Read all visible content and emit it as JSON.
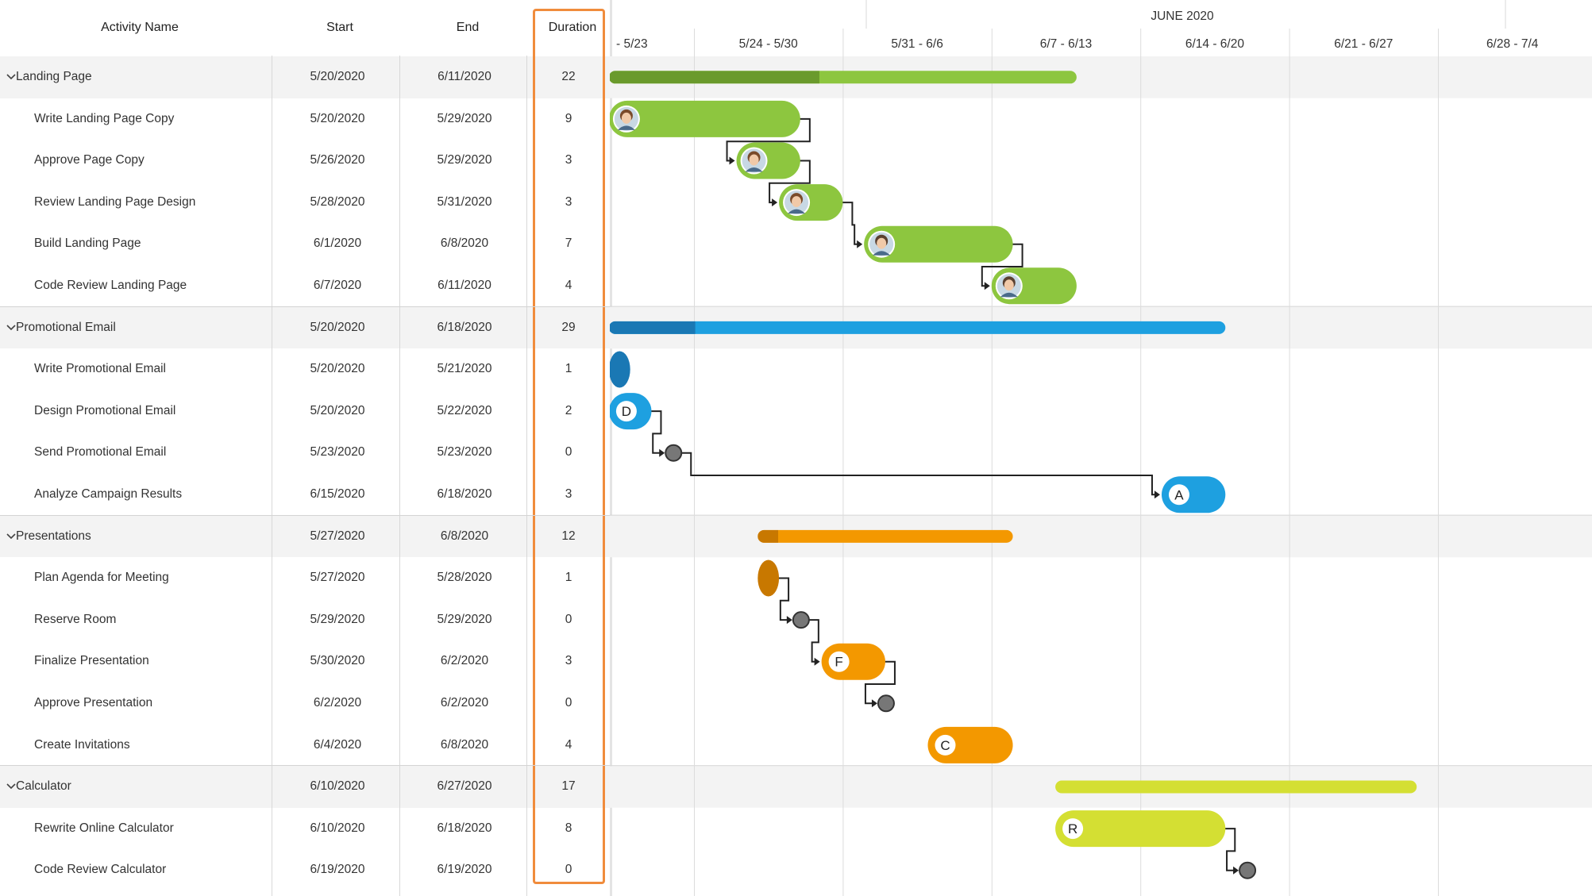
{
  "grid": {
    "headers": {
      "name": "Activity Name",
      "start": "Start",
      "end": "End",
      "duration": "Duration"
    },
    "rows": [
      {
        "type": "group",
        "name": "Landing Page",
        "start": "5/20/2020",
        "end": "6/11/2020",
        "duration": "22",
        "icon": "chevron-down-icon"
      },
      {
        "type": "task",
        "name": "Write Landing Page Copy",
        "start": "5/20/2020",
        "end": "5/29/2020",
        "duration": "9"
      },
      {
        "type": "task",
        "name": "Approve Page Copy",
        "start": "5/26/2020",
        "end": "5/29/2020",
        "duration": "3"
      },
      {
        "type": "task",
        "name": "Review Landing Page Design",
        "start": "5/28/2020",
        "end": "5/31/2020",
        "duration": "3"
      },
      {
        "type": "task",
        "name": "Build Landing Page",
        "start": "6/1/2020",
        "end": "6/8/2020",
        "duration": "7"
      },
      {
        "type": "task",
        "name": "Code Review Landing Page",
        "start": "6/7/2020",
        "end": "6/11/2020",
        "duration": "4"
      },
      {
        "type": "group",
        "name": "Promotional Email",
        "start": "5/20/2020",
        "end": "6/18/2020",
        "duration": "29",
        "icon": "chevron-down-icon"
      },
      {
        "type": "task",
        "name": "Write Promotional Email",
        "start": "5/20/2020",
        "end": "5/21/2020",
        "duration": "1"
      },
      {
        "type": "task",
        "name": "Design Promotional Email",
        "start": "5/20/2020",
        "end": "5/22/2020",
        "duration": "2"
      },
      {
        "type": "task",
        "name": "Send Promotional Email",
        "start": "5/23/2020",
        "end": "5/23/2020",
        "duration": "0"
      },
      {
        "type": "task",
        "name": "Analyze Campaign Results",
        "start": "6/15/2020",
        "end": "6/18/2020",
        "duration": "3"
      },
      {
        "type": "group",
        "name": "Presentations",
        "start": "5/27/2020",
        "end": "6/8/2020",
        "duration": "12",
        "icon": "chevron-down-icon"
      },
      {
        "type": "task",
        "name": "Plan Agenda for Meeting",
        "start": "5/27/2020",
        "end": "5/28/2020",
        "duration": "1"
      },
      {
        "type": "task",
        "name": "Reserve Room",
        "start": "5/29/2020",
        "end": "5/29/2020",
        "duration": "0"
      },
      {
        "type": "task",
        "name": "Finalize Presentation",
        "start": "5/30/2020",
        "end": "6/2/2020",
        "duration": "3"
      },
      {
        "type": "task",
        "name": "Approve Presentation",
        "start": "6/2/2020",
        "end": "6/2/2020",
        "duration": "0"
      },
      {
        "type": "task",
        "name": "Create Invitations",
        "start": "6/4/2020",
        "end": "6/8/2020",
        "duration": "4"
      },
      {
        "type": "group",
        "name": "Calculator",
        "start": "6/10/2020",
        "end": "6/27/2020",
        "duration": "17",
        "icon": "chevron-down-icon"
      },
      {
        "type": "task",
        "name": "Rewrite Online Calculator",
        "start": "6/10/2020",
        "end": "6/18/2020",
        "duration": "8"
      },
      {
        "type": "task",
        "name": "Code Review Calculator",
        "start": "6/19/2020",
        "end": "6/19/2020",
        "duration": "0"
      }
    ]
  },
  "timeline": {
    "month_label": "JUNE 2020",
    "weeks": [
      "- 5/23",
      "5/24 - 5/30",
      "5/31 - 6/6",
      "6/7 - 6/13",
      "6/14 - 6/20",
      "6/21 - 6/27",
      "6/28 - 7/4"
    ]
  },
  "colors": {
    "landing": "#8dc63f",
    "landing_dark": "#6a9a2c",
    "email": "#1ea0e0",
    "email_dark": "#1a78b4",
    "presentations": "#f39800",
    "presentations_dark": "#c87800",
    "calculator": "#d4df33",
    "milestone": "#777777",
    "connector": "#222222",
    "highlight": "#f08c3c"
  },
  "bars": [
    {
      "row": 0,
      "kind": "summary",
      "group": "landing",
      "start": "2020-05-20",
      "end": "2020-06-11",
      "progress": 0.45
    },
    {
      "row": 1,
      "kind": "task",
      "group": "landing",
      "start": "2020-05-20",
      "end": "2020-05-29",
      "avatar": "woman-avatar-icon"
    },
    {
      "row": 2,
      "kind": "task",
      "group": "landing",
      "start": "2020-05-26",
      "end": "2020-05-29",
      "avatar": "woman-avatar-icon"
    },
    {
      "row": 3,
      "kind": "task",
      "group": "landing",
      "start": "2020-05-28",
      "end": "2020-05-31",
      "avatar": "woman-avatar-icon"
    },
    {
      "row": 4,
      "kind": "task",
      "group": "landing",
      "start": "2020-06-01",
      "end": "2020-06-08",
      "avatar": "man-avatar-icon"
    },
    {
      "row": 5,
      "kind": "task",
      "group": "landing",
      "start": "2020-06-07",
      "end": "2020-06-11",
      "avatar": "man-avatar-icon"
    },
    {
      "row": 6,
      "kind": "summary",
      "group": "email",
      "start": "2020-05-20",
      "end": "2020-06-18",
      "progress": 0.14
    },
    {
      "row": 7,
      "kind": "task",
      "group": "email",
      "start": "2020-05-20",
      "end": "2020-05-21",
      "dark": true
    },
    {
      "row": 8,
      "kind": "task",
      "group": "email",
      "start": "2020-05-20",
      "end": "2020-05-22",
      "letter": "D"
    },
    {
      "row": 9,
      "kind": "milestone",
      "group": "email",
      "start": "2020-05-23"
    },
    {
      "row": 10,
      "kind": "task",
      "group": "email",
      "start": "2020-06-15",
      "end": "2020-06-18",
      "letter": "A"
    },
    {
      "row": 11,
      "kind": "summary",
      "group": "presentations",
      "start": "2020-05-27",
      "end": "2020-06-08",
      "progress": 0.08
    },
    {
      "row": 12,
      "kind": "task",
      "group": "presentations",
      "start": "2020-05-27",
      "end": "2020-05-28",
      "dark": true
    },
    {
      "row": 13,
      "kind": "milestone",
      "group": "presentations",
      "start": "2020-05-29"
    },
    {
      "row": 14,
      "kind": "task",
      "group": "presentations",
      "start": "2020-05-30",
      "end": "2020-06-02",
      "letter": "F"
    },
    {
      "row": 15,
      "kind": "milestone",
      "group": "presentations",
      "start": "2020-06-02"
    },
    {
      "row": 16,
      "kind": "task",
      "group": "presentations",
      "start": "2020-06-04",
      "end": "2020-06-08",
      "letter": "C"
    },
    {
      "row": 17,
      "kind": "summary",
      "group": "calculator",
      "start": "2020-06-10",
      "end": "2020-06-27",
      "progress": 0
    },
    {
      "row": 18,
      "kind": "task",
      "group": "calculator",
      "start": "2020-06-10",
      "end": "2020-06-18",
      "letter": "R"
    },
    {
      "row": 19,
      "kind": "milestone",
      "group": "calculator",
      "start": "2020-06-19"
    }
  ],
  "dependencies": [
    {
      "from": 1,
      "to": 2
    },
    {
      "from": 2,
      "to": 3
    },
    {
      "from": 3,
      "to": 4
    },
    {
      "from": 4,
      "to": 5
    },
    {
      "from": 8,
      "to": 9
    },
    {
      "from": 9,
      "to": 10
    },
    {
      "from": 12,
      "to": 13
    },
    {
      "from": 13,
      "to": 14
    },
    {
      "from": 14,
      "to": 15
    },
    {
      "from": 18,
      "to": 19
    }
  ]
}
